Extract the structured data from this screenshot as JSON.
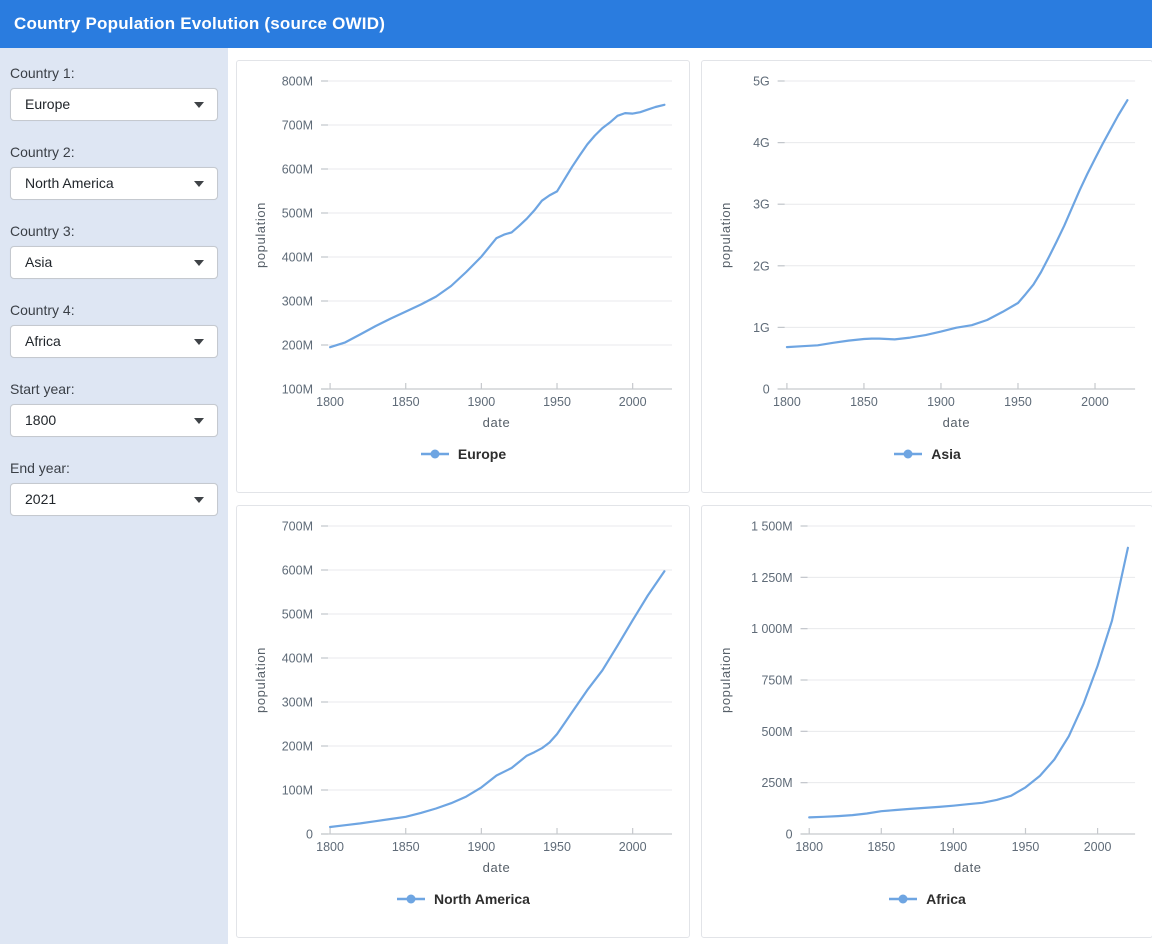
{
  "header": {
    "title": "Country Population Evolution (source OWID)"
  },
  "sidebar": {
    "controls": [
      {
        "label": "Country 1:",
        "value": "Europe"
      },
      {
        "label": "Country 2:",
        "value": "North America"
      },
      {
        "label": "Country 3:",
        "value": "Asia"
      },
      {
        "label": "Country 4:",
        "value": "Africa"
      },
      {
        "label": "Start year:",
        "value": "1800"
      },
      {
        "label": "End year:",
        "value": "2021"
      }
    ]
  },
  "colors": {
    "header_bg": "#2a7cdf",
    "sidebar_bg": "#dee6f3",
    "line": "#6ea5e2"
  },
  "chart_data": [
    {
      "type": "line",
      "title": "",
      "legend_label": "Europe",
      "xlabel": "date",
      "ylabel": "population",
      "grid": true,
      "legend_position": "bottom-center",
      "line_color": "#6ea5e2",
      "plot_left": 84,
      "x_domain": [
        1794,
        2026
      ],
      "y_domain": [
        100,
        800
      ],
      "x_ticks": [
        {
          "v": 1800,
          "label": "1800"
        },
        {
          "v": 1850,
          "label": "1850"
        },
        {
          "v": 1900,
          "label": "1900"
        },
        {
          "v": 1950,
          "label": "1950"
        },
        {
          "v": 2000,
          "label": "2000"
        }
      ],
      "y_ticks": [
        {
          "v": 100,
          "label": "100M"
        },
        {
          "v": 200,
          "label": "200M"
        },
        {
          "v": 300,
          "label": "300M"
        },
        {
          "v": 400,
          "label": "400M"
        },
        {
          "v": 500,
          "label": "500M"
        },
        {
          "v": 600,
          "label": "600M"
        },
        {
          "v": 700,
          "label": "700M"
        },
        {
          "v": 800,
          "label": "800M"
        }
      ],
      "x": [
        1800,
        1810,
        1820,
        1830,
        1840,
        1850,
        1860,
        1870,
        1880,
        1890,
        1900,
        1910,
        1915,
        1920,
        1925,
        1930,
        1935,
        1940,
        1945,
        1950,
        1955,
        1960,
        1965,
        1970,
        1975,
        1980,
        1985,
        1990,
        1995,
        2000,
        2005,
        2010,
        2015,
        2021
      ],
      "y": [
        195,
        206,
        224,
        243,
        260,
        276,
        292,
        310,
        334,
        366,
        401,
        443,
        451,
        456,
        471,
        487,
        506,
        528,
        540,
        549,
        577,
        605,
        631,
        656,
        676,
        693,
        706,
        721,
        727,
        726,
        729,
        735,
        741,
        746
      ],
      "y_units": "millions"
    },
    {
      "type": "line",
      "title": "",
      "legend_label": "Asia",
      "xlabel": "date",
      "ylabel": "population",
      "grid": true,
      "legend_position": "bottom-center",
      "line_color": "#6ea5e2",
      "plot_left": 76,
      "x_domain": [
        1794,
        2026
      ],
      "y_domain": [
        0,
        5000
      ],
      "x_ticks": [
        {
          "v": 1800,
          "label": "1800"
        },
        {
          "v": 1850,
          "label": "1850"
        },
        {
          "v": 1900,
          "label": "1900"
        },
        {
          "v": 1950,
          "label": "1950"
        },
        {
          "v": 2000,
          "label": "2000"
        }
      ],
      "y_ticks": [
        {
          "v": 0,
          "label": "0"
        },
        {
          "v": 1000,
          "label": "1G"
        },
        {
          "v": 2000,
          "label": "2G"
        },
        {
          "v": 3000,
          "label": "3G"
        },
        {
          "v": 4000,
          "label": "4G"
        },
        {
          "v": 5000,
          "label": "5G"
        }
      ],
      "x": [
        1800,
        1810,
        1820,
        1830,
        1840,
        1850,
        1855,
        1860,
        1865,
        1870,
        1880,
        1890,
        1900,
        1910,
        1920,
        1930,
        1940,
        1950,
        1955,
        1960,
        1965,
        1970,
        1975,
        1980,
        1985,
        1990,
        1995,
        2000,
        2005,
        2010,
        2015,
        2021
      ],
      "y": [
        680,
        695,
        710,
        750,
        785,
        812,
        818,
        818,
        812,
        806,
        835,
        875,
        932,
        995,
        1035,
        1120,
        1252,
        1396,
        1540,
        1695,
        1900,
        2138,
        2390,
        2650,
        2940,
        3226,
        3490,
        3741,
        3980,
        4210,
        4440,
        4688
      ],
      "y_units": "millions"
    },
    {
      "type": "line",
      "title": "",
      "legend_label": "North America",
      "xlabel": "date",
      "ylabel": "population",
      "grid": true,
      "legend_position": "bottom-center",
      "line_color": "#6ea5e2",
      "plot_left": 84,
      "x_domain": [
        1794,
        2026
      ],
      "y_domain": [
        0,
        700
      ],
      "x_ticks": [
        {
          "v": 1800,
          "label": "1800"
        },
        {
          "v": 1850,
          "label": "1850"
        },
        {
          "v": 1900,
          "label": "1900"
        },
        {
          "v": 1950,
          "label": "1950"
        },
        {
          "v": 2000,
          "label": "2000"
        }
      ],
      "y_ticks": [
        {
          "v": 0,
          "label": "0"
        },
        {
          "v": 100,
          "label": "100M"
        },
        {
          "v": 200,
          "label": "200M"
        },
        {
          "v": 300,
          "label": "300M"
        },
        {
          "v": 400,
          "label": "400M"
        },
        {
          "v": 500,
          "label": "500M"
        },
        {
          "v": 600,
          "label": "600M"
        },
        {
          "v": 700,
          "label": "700M"
        }
      ],
      "x": [
        1800,
        1810,
        1820,
        1830,
        1840,
        1850,
        1860,
        1870,
        1880,
        1890,
        1900,
        1910,
        1920,
        1930,
        1935,
        1940,
        1945,
        1950,
        1955,
        1960,
        1970,
        1980,
        1990,
        2000,
        2010,
        2021
      ],
      "y": [
        16,
        20,
        24,
        29,
        34,
        39,
        48,
        58,
        70,
        85,
        106,
        133,
        150,
        178,
        186,
        195,
        208,
        227,
        252,
        277,
        327,
        372,
        428,
        486,
        542,
        597
      ],
      "y_units": "millions"
    },
    {
      "type": "line",
      "title": "",
      "legend_label": "Africa",
      "xlabel": "date",
      "ylabel": "population",
      "grid": true,
      "legend_position": "bottom-center",
      "line_color": "#6ea5e2",
      "plot_left": 99,
      "x_domain": [
        1794,
        2026
      ],
      "y_domain": [
        0,
        1500
      ],
      "x_ticks": [
        {
          "v": 1800,
          "label": "1800"
        },
        {
          "v": 1850,
          "label": "1850"
        },
        {
          "v": 1900,
          "label": "1900"
        },
        {
          "v": 1950,
          "label": "1950"
        },
        {
          "v": 2000,
          "label": "2000"
        }
      ],
      "y_ticks": [
        {
          "v": 0,
          "label": "0"
        },
        {
          "v": 250,
          "label": "250M"
        },
        {
          "v": 500,
          "label": "500M"
        },
        {
          "v": 750,
          "label": "750M"
        },
        {
          "v": 1000,
          "label": "1 000M"
        },
        {
          "v": 1250,
          "label": "1 250M"
        },
        {
          "v": 1500,
          "label": "1 500M"
        }
      ],
      "x": [
        1800,
        1810,
        1820,
        1830,
        1840,
        1850,
        1860,
        1870,
        1880,
        1890,
        1900,
        1910,
        1920,
        1930,
        1940,
        1950,
        1960,
        1970,
        1980,
        1990,
        2000,
        2010,
        2021
      ],
      "y": [
        81,
        84,
        87,
        92,
        100,
        111,
        117,
        122,
        127,
        132,
        138,
        145,
        152,
        166,
        186,
        227,
        283,
        363,
        476,
        630,
        818,
        1039,
        1394
      ],
      "y_units": "millions"
    }
  ]
}
